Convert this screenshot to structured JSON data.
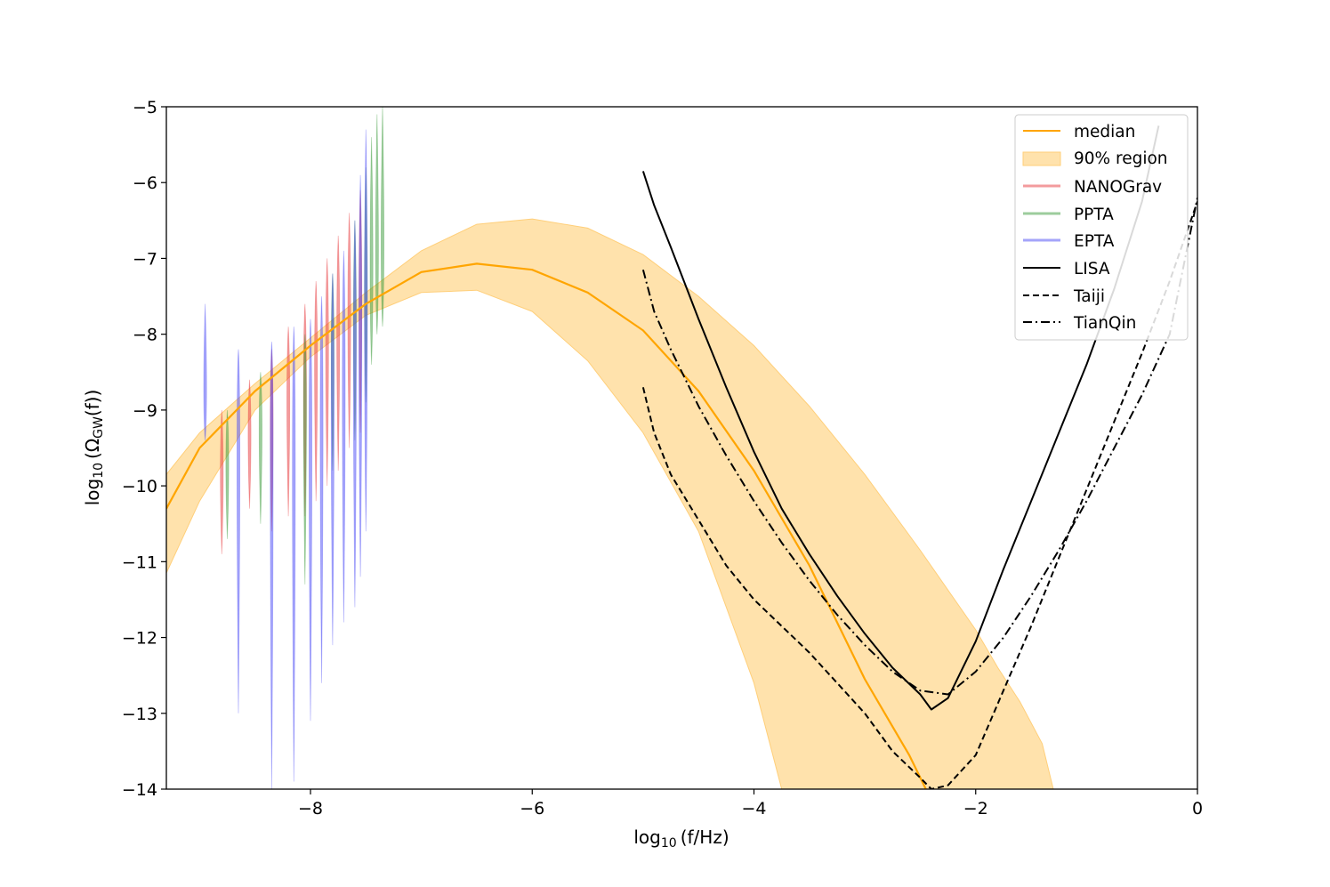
{
  "chart_data": {
    "type": "line",
    "title": "",
    "xlabel": "log10 (f/Hz)",
    "ylabel": "log10 (ΩGW(f))",
    "xlabel_parts": {
      "log": "log",
      "sub": "10",
      "rest": "(f/Hz)"
    },
    "ylabel_parts": {
      "log": "log",
      "sub": "10",
      "pre": "(Ω",
      "gw": "GW",
      "rest": "(f))"
    },
    "xlim": [
      -9.3,
      0
    ],
    "ylim": [
      -14,
      -5
    ],
    "xticks": [
      -8,
      -6,
      -4,
      -2,
      0
    ],
    "xtick_labels": [
      "−8",
      "−6",
      "−4",
      "−2",
      "0"
    ],
    "yticks": [
      -5,
      -6,
      -7,
      -8,
      -9,
      -10,
      -11,
      -12,
      -13,
      -14
    ],
    "ytick_labels": [
      "−5",
      "−6",
      "−7",
      "−8",
      "−9",
      "−10",
      "−11",
      "−12",
      "−13",
      "−14"
    ],
    "legend_position": "top-right",
    "legend": [
      "median",
      "90% region",
      "NANOGrav",
      "PPTA",
      "EPTA",
      "LISA",
      "Taiji",
      "TianQin"
    ],
    "colors": {
      "median": "#ffa500",
      "region_fill": "#ffe2ac",
      "region_edge": "#ffcf7a",
      "nanograv": "#e8383b",
      "ppta": "#3a9a3a",
      "epta": "#4a4af5",
      "detectors": "#000000"
    },
    "median": {
      "x": [
        -9.3,
        -9.0,
        -8.5,
        -8.0,
        -7.5,
        -7.0,
        -6.5,
        -6.0,
        -5.5,
        -5.0,
        -4.5,
        -4.0,
        -3.5,
        -3.0,
        -2.6,
        -2.45
      ],
      "y": [
        -10.3,
        -9.5,
        -8.75,
        -8.15,
        -7.6,
        -7.18,
        -7.07,
        -7.15,
        -7.45,
        -7.95,
        -8.75,
        -9.8,
        -11.05,
        -12.55,
        -13.55,
        -14.0
      ]
    },
    "region_upper": {
      "x": [
        -9.3,
        -9.0,
        -8.5,
        -8.0,
        -7.5,
        -7.0,
        -6.5,
        -6.0,
        -5.5,
        -5.0,
        -4.5,
        -4.0,
        -3.5,
        -3.0,
        -2.5,
        -2.0,
        -1.8,
        -1.6,
        -1.4,
        -1.3
      ],
      "y": [
        -9.85,
        -9.3,
        -8.65,
        -8.05,
        -7.45,
        -6.9,
        -6.55,
        -6.48,
        -6.6,
        -6.95,
        -7.5,
        -8.15,
        -8.95,
        -9.85,
        -10.85,
        -11.9,
        -12.4,
        -12.85,
        -13.4,
        -14.0
      ]
    },
    "region_lower": {
      "x": [
        -9.3,
        -9.0,
        -8.5,
        -8.0,
        -7.5,
        -7.0,
        -6.5,
        -6.0,
        -5.5,
        -5.0,
        -4.5,
        -4.0,
        -3.75
      ],
      "y": [
        -11.15,
        -10.2,
        -9.0,
        -8.3,
        -7.75,
        -7.45,
        -7.42,
        -7.7,
        -8.35,
        -9.3,
        -10.6,
        -12.6,
        -14.0
      ]
    },
    "series": [
      {
        "name": "LISA",
        "style": "solid",
        "x": [
          -5.0,
          -4.9,
          -4.75,
          -4.5,
          -4.25,
          -4.0,
          -3.75,
          -3.5,
          -3.25,
          -3.0,
          -2.75,
          -2.5,
          -2.4,
          -2.25,
          -2.0,
          -1.75,
          -1.5,
          -1.25,
          -1.0,
          -0.75,
          -0.5,
          -0.35
        ],
        "y": [
          -5.85,
          -6.3,
          -6.85,
          -7.8,
          -8.7,
          -9.55,
          -10.3,
          -10.9,
          -11.45,
          -11.95,
          -12.4,
          -12.75,
          -12.95,
          -12.8,
          -12.05,
          -11.1,
          -10.2,
          -9.3,
          -8.4,
          -7.4,
          -6.25,
          -5.25
        ]
      },
      {
        "name": "Taiji",
        "style": "dashed",
        "x": [
          -5.0,
          -4.9,
          -4.75,
          -4.5,
          -4.25,
          -4.0,
          -3.75,
          -3.5,
          -3.25,
          -3.0,
          -2.75,
          -2.5,
          -2.4,
          -2.25,
          -2.0,
          -1.75,
          -1.5,
          -1.25,
          -1.0,
          -0.75,
          -0.5,
          -0.25,
          0.0
        ],
        "y": [
          -8.7,
          -9.3,
          -9.85,
          -10.45,
          -11.05,
          -11.5,
          -11.85,
          -12.2,
          -12.6,
          -13.0,
          -13.5,
          -13.85,
          -14.0,
          -13.95,
          -13.55,
          -12.7,
          -11.85,
          -10.95,
          -10.05,
          -9.15,
          -8.25,
          -7.3,
          -6.25
        ]
      },
      {
        "name": "TianQin",
        "style": "dashdot",
        "x": [
          -5.0,
          -4.9,
          -4.75,
          -4.5,
          -4.25,
          -4.0,
          -3.75,
          -3.5,
          -3.25,
          -3.0,
          -2.75,
          -2.5,
          -2.25,
          -2.0,
          -1.75,
          -1.5,
          -1.25,
          -1.0,
          -0.75,
          -0.5,
          -0.25,
          0.0
        ],
        "y": [
          -7.15,
          -7.7,
          -8.2,
          -8.95,
          -9.6,
          -10.2,
          -10.75,
          -11.25,
          -11.7,
          -12.1,
          -12.45,
          -12.7,
          -12.75,
          -12.45,
          -12.0,
          -11.45,
          -10.85,
          -10.2,
          -9.5,
          -8.8,
          -8.0,
          -6.2
        ]
      }
    ],
    "pta_violins": [
      {
        "name": "NANOGrav",
        "x": -8.8,
        "y": -9.7,
        "lo": -10.9,
        "hi": -9.0
      },
      {
        "name": "NANOGrav",
        "x": -8.55,
        "y": -9.2,
        "lo": -10.3,
        "hi": -8.6
      },
      {
        "name": "NANOGrav",
        "x": -8.35,
        "y": -8.9,
        "lo": -10.6,
        "hi": -8.2
      },
      {
        "name": "NANOGrav",
        "x": -8.2,
        "y": -8.6,
        "lo": -10.4,
        "hi": -7.9
      },
      {
        "name": "NANOGrav",
        "x": -8.05,
        "y": -8.3,
        "lo": -10.4,
        "hi": -7.6
      },
      {
        "name": "NANOGrav",
        "x": -7.95,
        "y": -8.1,
        "lo": -10.2,
        "hi": -7.3
      },
      {
        "name": "NANOGrav",
        "x": -7.85,
        "y": -7.9,
        "lo": -10.0,
        "hi": -7.0
      },
      {
        "name": "NANOGrav",
        "x": -7.75,
        "y": -7.7,
        "lo": -9.8,
        "hi": -6.7
      },
      {
        "name": "NANOGrav",
        "x": -7.65,
        "y": -7.5,
        "lo": -9.5,
        "hi": -6.4
      },
      {
        "name": "NANOGrav",
        "x": -7.55,
        "y": -7.3,
        "lo": -9.3,
        "hi": -6.1
      },
      {
        "name": "PPTA",
        "x": -8.75,
        "y": -9.6,
        "lo": -10.7,
        "hi": -9.0
      },
      {
        "name": "PPTA",
        "x": -8.45,
        "y": -9.0,
        "lo": -10.5,
        "hi": -8.5
      },
      {
        "name": "PPTA",
        "x": -8.05,
        "y": -8.6,
        "lo": -11.3,
        "hi": -8.0
      },
      {
        "name": "PPTA",
        "x": -7.8,
        "y": -8.0,
        "lo": -9.8,
        "hi": -7.2
      },
      {
        "name": "PPTA",
        "x": -7.6,
        "y": -7.7,
        "lo": -9.4,
        "hi": -6.5
      },
      {
        "name": "PPTA",
        "x": -7.5,
        "y": -7.4,
        "lo": -8.9,
        "hi": -5.8
      },
      {
        "name": "PPTA",
        "x": -7.45,
        "y": -7.3,
        "lo": -8.4,
        "hi": -5.4
      },
      {
        "name": "PPTA",
        "x": -7.4,
        "y": -7.2,
        "lo": -8.0,
        "hi": -5.1
      },
      {
        "name": "PPTA",
        "x": -7.35,
        "y": -7.1,
        "lo": -7.9,
        "hi": -5.0
      },
      {
        "name": "EPTA",
        "x": -8.95,
        "y": -8.9,
        "lo": -9.4,
        "hi": -7.6
      },
      {
        "name": "EPTA",
        "x": -8.65,
        "y": -8.8,
        "lo": -13.0,
        "hi": -8.2
      },
      {
        "name": "EPTA",
        "x": -8.35,
        "y": -8.7,
        "lo": -14.0,
        "hi": -8.1
      },
      {
        "name": "EPTA",
        "x": -8.15,
        "y": -8.8,
        "lo": -13.9,
        "hi": -7.9
      },
      {
        "name": "EPTA",
        "x": -8.0,
        "y": -8.6,
        "lo": -13.1,
        "hi": -7.8
      },
      {
        "name": "EPTA",
        "x": -7.9,
        "y": -8.5,
        "lo": -12.6,
        "hi": -7.5
      },
      {
        "name": "EPTA",
        "x": -7.8,
        "y": -8.3,
        "lo": -12.1,
        "hi": -7.2
      },
      {
        "name": "EPTA",
        "x": -7.7,
        "y": -8.1,
        "lo": -11.8,
        "hi": -6.9
      },
      {
        "name": "EPTA",
        "x": -7.6,
        "y": -7.9,
        "lo": -11.6,
        "hi": -6.5
      },
      {
        "name": "EPTA",
        "x": -7.55,
        "y": -7.7,
        "lo": -11.2,
        "hi": -5.9
      },
      {
        "name": "EPTA",
        "x": -7.5,
        "y": -7.5,
        "lo": -10.6,
        "hi": -5.3
      }
    ]
  }
}
